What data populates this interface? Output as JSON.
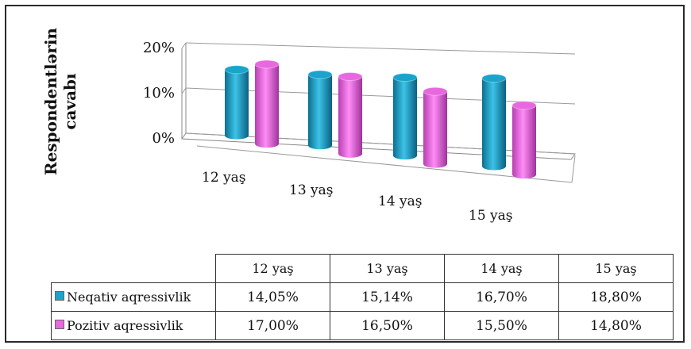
{
  "chart_data": {
    "type": "bar",
    "style": "3d-cylinder",
    "title": "",
    "ylabel": "Respondentlərin cavabı",
    "xlabel": "",
    "categories": [
      "12 yaş",
      "13 yaş",
      "14 yaş",
      "15 yaş"
    ],
    "series": [
      {
        "name": "Neqativ aqressivlik",
        "values": [
          14.05,
          15.14,
          16.7,
          18.8
        ],
        "value_labels": [
          "14,05%",
          "15,14%",
          "16,70%",
          "18,80%"
        ],
        "color": "#1aa3cc"
      },
      {
        "name": "Pozitiv aqressivlik",
        "values": [
          17.0,
          16.5,
          15.5,
          14.8
        ],
        "value_labels": [
          "17,00%",
          "16,50%",
          "15,50%",
          "14,80%"
        ],
        "color": "#e868e0"
      }
    ],
    "ylim": [
      0,
      20
    ],
    "yticks": [
      "0%",
      "10%",
      "20%"
    ],
    "grid": true,
    "legend": "data-table-below"
  }
}
